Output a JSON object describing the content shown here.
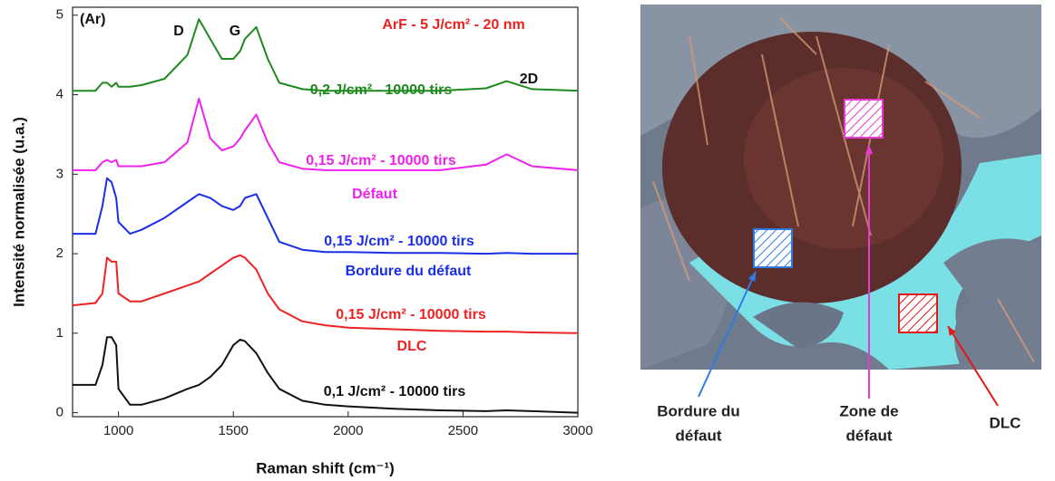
{
  "chart_data": {
    "type": "line",
    "title": "ArF - 5 J/cm² - 20 nm",
    "title_color": "#e8231f",
    "x_label": "Raman shift (cm⁻¹)",
    "y_label": "Intensité normalisée (u.a.)",
    "x": [
      800,
      900,
      930,
      950,
      970,
      990,
      1000,
      1050,
      1100,
      1200,
      1300,
      1350,
      1400,
      1450,
      1500,
      1530,
      1550,
      1600,
      1650,
      1700,
      1800,
      1900,
      2000,
      2200,
      2400,
      2600,
      2690,
      2800,
      3000
    ],
    "xlim": [
      800,
      3000
    ],
    "xticks": [
      1000,
      1500,
      2000,
      2500,
      3000
    ],
    "ylim": [
      -0.05,
      5.1
    ],
    "yticks": [
      0,
      1,
      2,
      3,
      4,
      5
    ],
    "series": [
      {
        "name": "0,1 J/cm² - 10000 tirs",
        "color": "#111111",
        "values": [
          0.35,
          0.35,
          0.6,
          0.95,
          0.95,
          0.85,
          0.3,
          0.1,
          0.1,
          0.18,
          0.3,
          0.35,
          0.45,
          0.6,
          0.85,
          0.92,
          0.9,
          0.75,
          0.5,
          0.3,
          0.15,
          0.1,
          0.08,
          0.05,
          0.03,
          0.02,
          0.03,
          0.02,
          0.0
        ]
      },
      {
        "name": "0,15 J/cm² - 10000 tirs",
        "color": "#ee2222",
        "values": [
          1.35,
          1.38,
          1.5,
          1.95,
          1.9,
          1.9,
          1.5,
          1.4,
          1.4,
          1.5,
          1.6,
          1.65,
          1.75,
          1.85,
          1.95,
          1.98,
          1.95,
          1.8,
          1.5,
          1.3,
          1.15,
          1.1,
          1.07,
          1.05,
          1.03,
          1.02,
          1.02,
          1.01,
          1.0
        ]
      },
      {
        "name": "0,15 J/cm² - 10000 tirs",
        "color": "#1a2ee6",
        "values": [
          2.25,
          2.25,
          2.6,
          2.95,
          2.9,
          2.7,
          2.4,
          2.25,
          2.3,
          2.45,
          2.65,
          2.75,
          2.7,
          2.6,
          2.55,
          2.6,
          2.7,
          2.75,
          2.45,
          2.15,
          2.05,
          2.02,
          2.02,
          2.01,
          2.01,
          2.0,
          2.01,
          2.0,
          2.0
        ]
      },
      {
        "name": "0,15 J/cm² - 10000 tirs",
        "color": "#ee22ee",
        "values": [
          3.05,
          3.05,
          3.15,
          3.18,
          3.15,
          3.18,
          3.1,
          3.1,
          3.1,
          3.15,
          3.4,
          3.95,
          3.45,
          3.3,
          3.35,
          3.45,
          3.55,
          3.75,
          3.4,
          3.15,
          3.07,
          3.05,
          3.05,
          3.05,
          3.05,
          3.12,
          3.25,
          3.1,
          3.05
        ]
      },
      {
        "name": "0,2 J/cm² - 10000 tirs",
        "color": "#1e8a1e",
        "values": [
          4.05,
          4.05,
          4.15,
          4.15,
          4.1,
          4.15,
          4.1,
          4.1,
          4.12,
          4.2,
          4.5,
          4.95,
          4.7,
          4.45,
          4.45,
          4.55,
          4.7,
          4.85,
          4.45,
          4.15,
          4.07,
          4.05,
          4.05,
          4.05,
          4.05,
          4.08,
          4.17,
          4.07,
          4.05
        ]
      }
    ],
    "annotations": [
      {
        "text": "(Ar)",
        "color": "#111111"
      },
      {
        "text": "D",
        "color": "#111111"
      },
      {
        "text": "G",
        "color": "#111111"
      },
      {
        "text": "2D",
        "color": "#111111"
      },
      {
        "text": "Défaut",
        "color": "#ee22ee"
      },
      {
        "text": "Bordure du défaut",
        "color": "#1a2ee6"
      },
      {
        "text": "DLC",
        "color": "#ee2222"
      }
    ]
  },
  "micrograph": {
    "labels": [
      {
        "lines": [
          "Bordure du",
          "défaut"
        ],
        "color": "#2e7be6"
      },
      {
        "lines": [
          "Zone de",
          "défaut"
        ],
        "color": "#e83ad0"
      },
      {
        "lines": [
          "DLC"
        ],
        "color": "#e01818"
      }
    ]
  }
}
